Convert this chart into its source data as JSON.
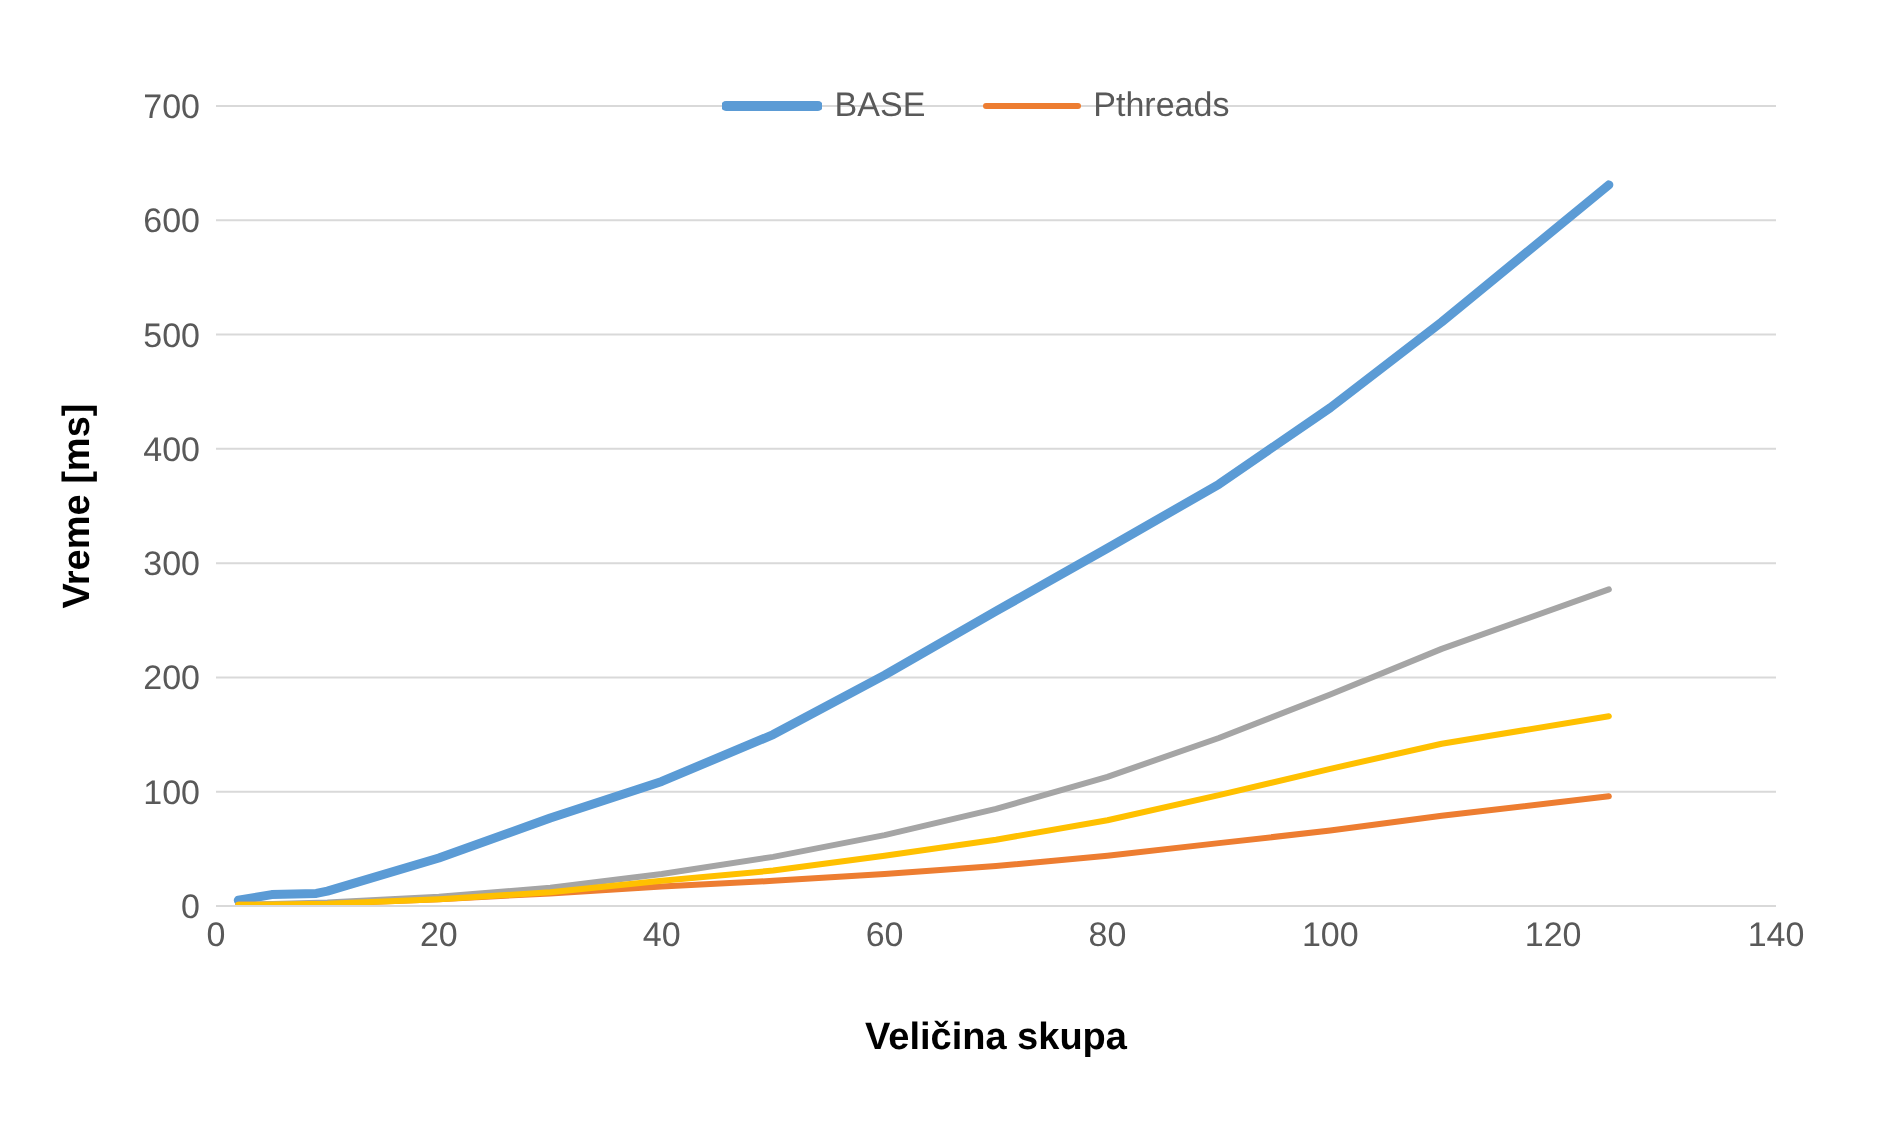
{
  "chart_data": {
    "type": "line",
    "xlabel": "Veličina skupa",
    "ylabel": "Vreme [ms]",
    "xlim": [
      0,
      140
    ],
    "xticks": [
      0,
      20,
      40,
      60,
      80,
      100,
      120,
      140
    ],
    "ylim": [
      0,
      700
    ],
    "yticks": [
      0,
      100,
      200,
      300,
      400,
      500,
      600,
      700
    ],
    "grid": "y",
    "legend": "top",
    "marker": "none",
    "line_style": "solid",
    "series": [
      {
        "name": "BASE",
        "color": "#5b9bd5",
        "x": [
          2,
          5,
          9,
          10,
          20,
          30,
          40,
          50,
          60,
          70,
          80,
          90,
          100,
          110,
          125
        ],
        "values": [
          5,
          10,
          11,
          13,
          42,
          77,
          109,
          150,
          202,
          258,
          313,
          369,
          436,
          511,
          631
        ]
      },
      {
        "name": "Pthreads",
        "color": "#ed7d31",
        "x": [
          2,
          10,
          20,
          30,
          40,
          50,
          60,
          70,
          80,
          90,
          100,
          110,
          125
        ],
        "values": [
          1,
          2,
          6,
          11,
          17,
          22,
          28,
          35,
          44,
          55,
          66,
          79,
          96
        ]
      },
      {
        "color": "#a5a5a5",
        "x": [
          2,
          10,
          20,
          30,
          40,
          50,
          60,
          70,
          80,
          90,
          100,
          110,
          125
        ],
        "values": [
          1,
          3,
          8,
          16,
          28,
          43,
          62,
          85,
          113,
          147,
          185,
          225,
          277
        ]
      },
      {
        "color": "#ffc000",
        "x": [
          2,
          10,
          20,
          30,
          40,
          50,
          60,
          70,
          80,
          90,
          100,
          110,
          125
        ],
        "values": [
          1,
          2,
          6,
          12,
          22,
          31,
          44,
          58,
          75,
          97,
          120,
          142,
          166
        ]
      }
    ]
  }
}
